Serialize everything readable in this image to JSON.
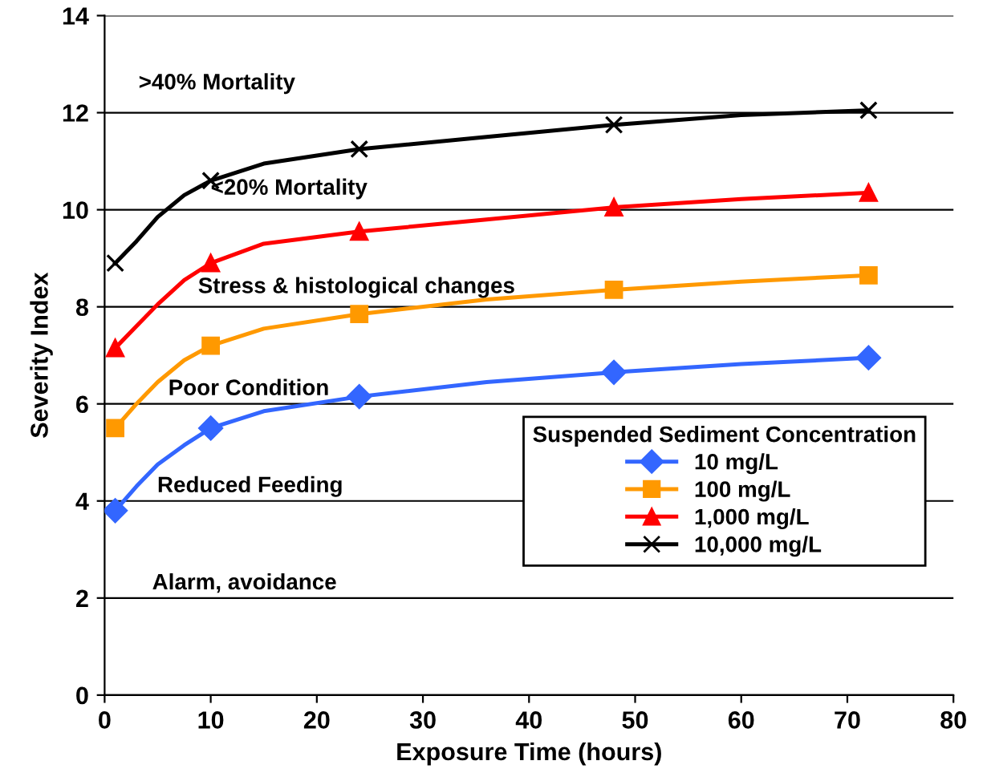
{
  "chart_data": {
    "type": "line",
    "xlabel": "Exposure Time (hours)",
    "ylabel": "Severity Index",
    "legend_title": "Suspended Sediment Concentration",
    "x": [
      1,
      10,
      24,
      48,
      72
    ],
    "series": [
      {
        "color": "#3366ff",
        "x": [
          1,
          3,
          5,
          7.5,
          10,
          15,
          24,
          36,
          48,
          60,
          72
        ],
        "values": [
          3.8,
          4.3,
          4.75,
          5.15,
          5.5,
          5.85,
          6.15,
          6.45,
          6.65,
          6.82,
          6.95
        ]
      },
      {
        "color": "#ff9900",
        "x": [
          1,
          3,
          5,
          7.5,
          10,
          15,
          24,
          36,
          48,
          60,
          72
        ],
        "values": [
          5.5,
          6.0,
          6.45,
          6.9,
          7.2,
          7.55,
          7.85,
          8.15,
          8.35,
          8.52,
          8.65
        ]
      },
      {
        "color": "#ff0000",
        "x": [
          1,
          3,
          5,
          7.5,
          10,
          15,
          24,
          36,
          48,
          60,
          72
        ],
        "values": [
          7.15,
          7.6,
          8.05,
          8.55,
          8.9,
          9.3,
          9.55,
          9.8,
          10.05,
          10.22,
          10.35
        ]
      },
      {
        "color": "#000000",
        "x": [
          1,
          3,
          5,
          7.5,
          10,
          15,
          24,
          36,
          48,
          60,
          72
        ],
        "values": [
          8.9,
          9.35,
          9.85,
          10.3,
          10.6,
          10.95,
          11.25,
          11.5,
          11.75,
          11.95,
          12.05
        ]
      },
      {
        "type": "scatter",
        "name": "10 mg/L",
        "color": "#3366ff",
        "marker": "diamond",
        "values": [
          3.8,
          5.5,
          6.15,
          6.65,
          6.95
        ]
      },
      {
        "type": "scatter",
        "name": "100 mg/L",
        "color": "#ff9900",
        "marker": "square",
        "values": [
          5.5,
          7.2,
          7.85,
          8.35,
          8.65
        ]
      },
      {
        "type": "scatter",
        "name": "1,000 mg/L",
        "color": "#ff0000",
        "marker": "triangle",
        "values": [
          7.15,
          8.9,
          9.55,
          10.05,
          10.35
        ]
      },
      {
        "type": "scatter",
        "name": "10,000 mg/L",
        "color": "#000000",
        "marker": "cross",
        "values": [
          8.9,
          10.6,
          11.25,
          11.75,
          12.05
        ]
      }
    ],
    "xlim": [
      0,
      80
    ],
    "xticks": [
      0,
      10,
      20,
      30,
      40,
      50,
      60,
      70,
      80
    ],
    "ylim": [
      0,
      14
    ],
    "yticks": [
      0,
      2,
      4,
      6,
      8,
      10,
      12,
      14
    ],
    "grid": "y",
    "legend": "right",
    "line_style": "solid",
    "annotations": [
      ">40% Mortality",
      "<20% Mortality",
      "Stress & histological changes",
      "Poor Condition",
      "Reduced Feeding",
      "Alarm, avoidance"
    ]
  }
}
